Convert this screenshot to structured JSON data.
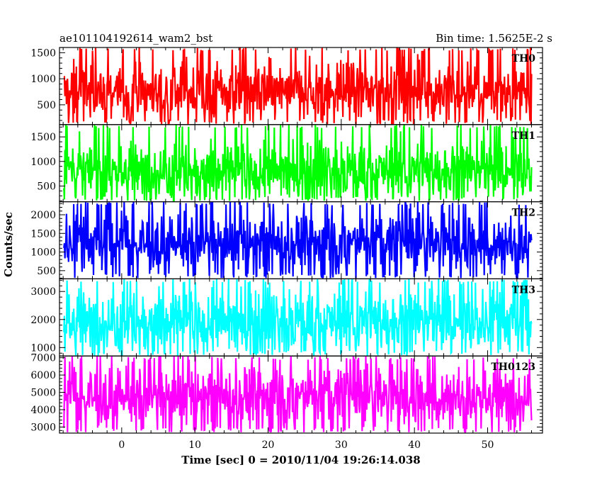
{
  "header": {
    "left": "ae101104192614_wam2_bst",
    "right": "Bin time: 1.5625E-2 s"
  },
  "chart_data": {
    "type": "line",
    "title": "ae101104192614_wam2_bst",
    "bin_time": "Bin time: 1.5625E-2 s",
    "xlabel": "Time [sec] 0 = 2010/11/04 19:26:14.038",
    "ylabel": "Counts/sec",
    "xlim": [
      -8.5,
      57.5
    ],
    "x_ticks": [
      0,
      10,
      20,
      30,
      40,
      50
    ],
    "x_data_range": [
      -7.9,
      56.0
    ],
    "grid": false,
    "panels": [
      {
        "name": "TH0",
        "color": "#ff0000",
        "ylim": [
          120,
          1600
        ],
        "yticks": [
          500,
          1000,
          1500
        ],
        "mean": 760,
        "spread": 270,
        "low": 130,
        "high": 1600
      },
      {
        "name": "TH1",
        "color": "#00ff00",
        "ylim": [
          180,
          1750
        ],
        "yticks": [
          500,
          1000,
          1500
        ],
        "mean": 820,
        "spread": 290,
        "low": 200,
        "high": 1750
      },
      {
        "name": "TH2",
        "color": "#0000ff",
        "ylim": [
          280,
          2350
        ],
        "yticks": [
          500,
          1000,
          1500,
          2000
        ],
        "mean": 1250,
        "spread": 380,
        "low": 300,
        "high": 2350
      },
      {
        "name": "TH3",
        "color": "#00ffff",
        "ylim": [
          700,
          3450
        ],
        "yticks": [
          1000,
          2000,
          3000
        ],
        "mean": 1950,
        "spread": 560,
        "low": 720,
        "high": 3450
      },
      {
        "name": "TH0123",
        "color": "#ff00ff",
        "ylim": [
          2650,
          7100
        ],
        "yticks": [
          3000,
          4000,
          5000,
          6000,
          7000
        ],
        "mean": 4780,
        "spread": 880,
        "low": 2700,
        "high": 7100
      }
    ]
  }
}
